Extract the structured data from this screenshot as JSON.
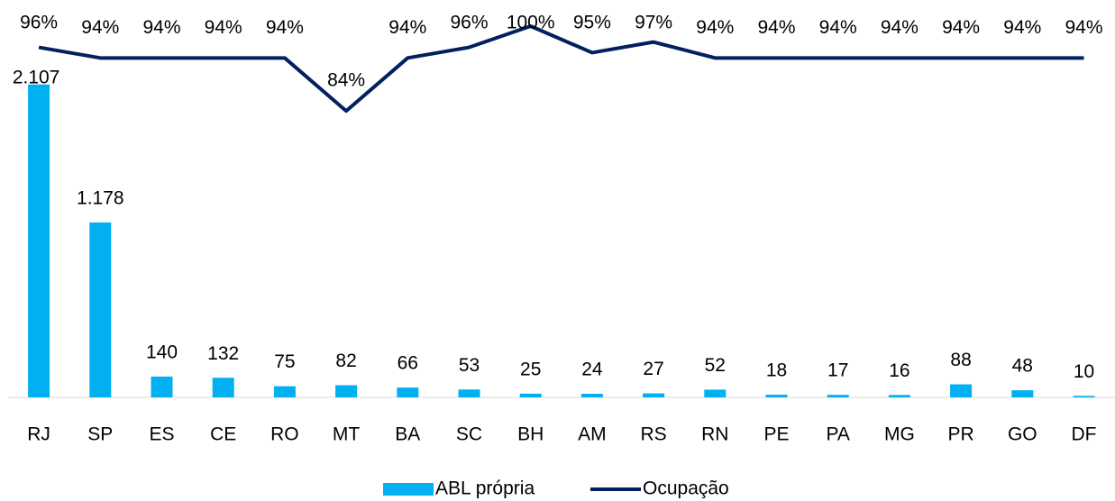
{
  "chart_data": {
    "type": "bar-line",
    "categories": [
      "RJ",
      "SP",
      "ES",
      "CE",
      "RO",
      "MT",
      "BA",
      "SC",
      "BH",
      "AM",
      "RS",
      "RN",
      "PE",
      "PA",
      "MG",
      "PR",
      "GO",
      "DF"
    ],
    "series": [
      {
        "name": "ABL própria",
        "color": "#00b0f0",
        "type": "bar",
        "values": [
          2107,
          1178,
          140,
          132,
          75,
          82,
          66,
          53,
          25,
          24,
          27,
          52,
          18,
          17,
          16,
          88,
          48,
          10
        ],
        "value_labels": [
          "2.107",
          "1.178",
          "140",
          "132",
          "75",
          "82",
          "66",
          "53",
          "25",
          "24",
          "27",
          "52",
          "18",
          "17",
          "16",
          "88",
          "48",
          "10"
        ]
      },
      {
        "name": "Ocupação",
        "color": "#002060",
        "type": "line",
        "axis": "y2",
        "values": [
          96,
          94,
          94,
          94,
          94,
          84,
          94,
          96,
          100,
          95,
          97,
          94,
          94,
          94,
          94,
          94,
          94,
          94
        ],
        "value_labels": [
          "96%",
          "94%",
          "94%",
          "94%",
          "94%",
          "84%",
          "94%",
          "96%",
          "100%",
          "95%",
          "97%",
          "94%",
          "94%",
          "94%",
          "94%",
          "94%",
          "94%",
          "94%"
        ]
      }
    ],
    "ylim": [
      0,
      2500
    ],
    "y2lim": [
      30,
      100
    ],
    "legend": "bottom"
  }
}
